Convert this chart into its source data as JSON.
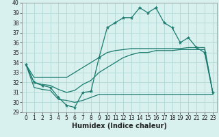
{
  "title": "",
  "xlabel": "Humidex (Indice chaleur)",
  "background_color": "#d8f0ee",
  "grid_color": "#b0d8d4",
  "line_color": "#1a7a6e",
  "x_hours": [
    0,
    1,
    2,
    3,
    4,
    5,
    6,
    7,
    8,
    9,
    10,
    11,
    12,
    13,
    14,
    15,
    16,
    17,
    18,
    19,
    20,
    21,
    22,
    23
  ],
  "series_main": [
    33.8,
    32.0,
    31.7,
    31.5,
    30.5,
    29.7,
    29.5,
    31.0,
    31.1,
    34.5,
    37.5,
    38.0,
    38.5,
    38.5,
    39.5,
    39.0,
    39.5,
    38.0,
    37.5,
    36.0,
    36.5,
    35.5,
    35.0,
    31.0
  ],
  "series_min": [
    33.8,
    31.5,
    31.3,
    31.2,
    30.3,
    30.2,
    30.0,
    30.2,
    30.5,
    30.8,
    30.8,
    30.8,
    30.8,
    30.8,
    30.8,
    30.8,
    30.8,
    30.8,
    30.8,
    30.8,
    30.8,
    30.8,
    30.8,
    30.8
  ],
  "series_max": [
    33.8,
    32.5,
    32.5,
    32.5,
    32.5,
    32.5,
    33.0,
    33.5,
    34.0,
    34.5,
    35.0,
    35.2,
    35.3,
    35.4,
    35.4,
    35.4,
    35.4,
    35.4,
    35.4,
    35.4,
    35.5,
    35.5,
    35.5,
    31.0
  ],
  "series_avg": [
    33.8,
    32.0,
    31.8,
    31.7,
    31.3,
    31.0,
    31.2,
    31.8,
    32.2,
    33.0,
    33.5,
    34.0,
    34.5,
    34.8,
    35.0,
    35.0,
    35.2,
    35.2,
    35.2,
    35.3,
    35.3,
    35.3,
    35.3,
    31.0
  ],
  "ylim": [
    29,
    40
  ],
  "yticks": [
    29,
    30,
    31,
    32,
    33,
    34,
    35,
    36,
    37,
    38,
    39,
    40
  ],
  "xticks": [
    0,
    1,
    2,
    3,
    4,
    5,
    6,
    7,
    8,
    9,
    10,
    11,
    12,
    13,
    14,
    15,
    16,
    17,
    18,
    19,
    20,
    21,
    22,
    23
  ],
  "tick_fontsize": 5.5,
  "xlabel_fontsize": 7.0
}
